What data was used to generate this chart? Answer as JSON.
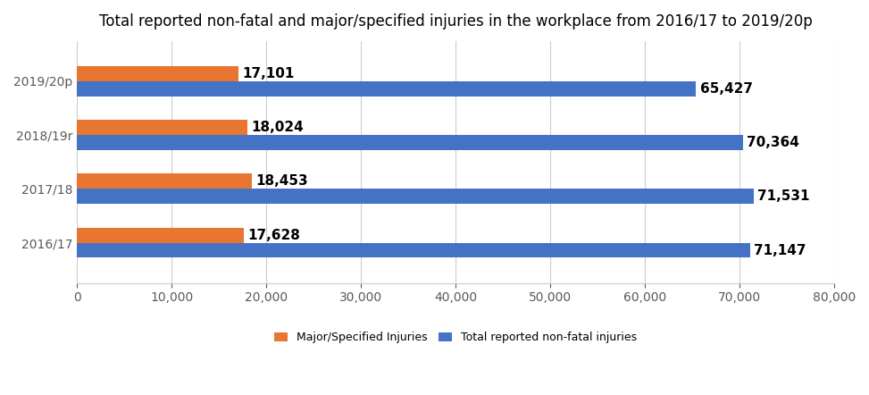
{
  "title": "Total reported non-fatal and major/specified injuries in the workplace from 2016/17 to 2019/20p",
  "categories": [
    "2016/17",
    "2017/18",
    "2018/19r",
    "2019/20p"
  ],
  "major_injuries": [
    17628,
    18453,
    18024,
    17101
  ],
  "total_injuries": [
    71147,
    71531,
    70364,
    65427
  ],
  "orange_color": "#E87530",
  "blue_color": "#4472C4",
  "bar_height": 0.28,
  "xlim": [
    0,
    80000
  ],
  "xticks": [
    0,
    10000,
    20000,
    30000,
    40000,
    50000,
    60000,
    70000,
    80000
  ],
  "legend_labels": [
    "Major/Specified Injuries",
    "Total reported non-fatal injuries"
  ],
  "grid_color": "#CCCCCC",
  "background_color": "#FFFFFF",
  "title_fontsize": 12,
  "label_fontsize": 11,
  "tick_fontsize": 10,
  "legend_fontsize": 9
}
